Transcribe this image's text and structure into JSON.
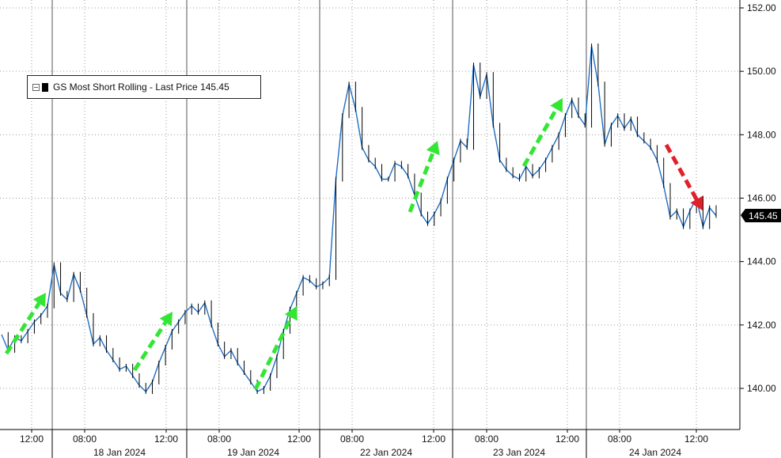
{
  "chart_data": {
    "type": "line",
    "title": "",
    "legend": {
      "label": "GS Most Short Rolling - Last Price 145.45",
      "placement": "top-left"
    },
    "last_price_label": "145.45",
    "ylim": [
      138.5,
      152.3
    ],
    "y_ticks": [
      "140.00",
      "142.00",
      "144.00",
      "146.00",
      "148.00",
      "150.00",
      "152.00"
    ],
    "y_tick_values": [
      140,
      142,
      144,
      146,
      148,
      150,
      152
    ],
    "x_tick_labels": [
      "12:00",
      "08:00",
      "12:00",
      "08:00",
      "12:00",
      "08:00",
      "12:00",
      "08:00",
      "12:00",
      "08:00",
      "12:00"
    ],
    "x_date_labels": [
      "18 Jan 2024",
      "19 Jan 2024",
      "22 Jan 2024",
      "23 Jan 2024",
      "24 Jan 2024"
    ],
    "grid": true,
    "colors": {
      "line": "#1f6fc5",
      "candle": "#000000",
      "up_arrow": "#33e633",
      "down_arrow": "#e0202a",
      "grid": "#9a9a9a"
    },
    "series": [
      {
        "values": [
          141.7,
          141.2,
          141.6,
          141.5,
          141.8,
          142.1,
          142.3,
          142.6,
          143.9,
          143.0,
          142.8,
          143.6,
          143.1,
          142.3,
          141.4,
          141.6,
          141.2,
          140.9,
          140.6,
          140.7,
          140.4,
          140.1,
          139.9,
          140.2,
          140.8,
          141.3,
          141.8,
          142.1,
          142.4,
          142.6,
          142.4,
          142.7,
          142.0,
          141.4,
          141.0,
          141.2,
          140.8,
          140.5,
          140.2,
          139.9,
          140.0,
          140.4,
          141.0,
          141.8,
          142.5,
          143.0,
          143.5,
          143.4,
          143.2,
          143.3,
          143.5,
          146.6,
          148.6,
          149.6,
          148.8,
          147.6,
          147.2,
          147.0,
          146.6,
          146.6,
          147.1,
          147.0,
          146.7,
          146.1,
          145.5,
          145.2,
          145.5,
          145.9,
          146.6,
          147.2,
          147.8,
          147.6,
          150.2,
          149.2,
          149.9,
          148.3,
          147.2,
          146.9,
          146.7,
          146.6,
          147.0,
          146.7,
          146.9,
          147.2,
          147.6,
          148.0,
          148.6,
          149.1,
          148.6,
          148.3,
          150.8,
          149.6,
          147.7,
          148.3,
          148.6,
          148.2,
          148.5,
          148.0,
          147.8,
          147.6,
          147.2,
          146.4,
          145.4,
          145.6,
          145.1,
          145.6,
          146.0,
          145.1,
          145.7,
          145.45
        ]
      }
    ]
  }
}
